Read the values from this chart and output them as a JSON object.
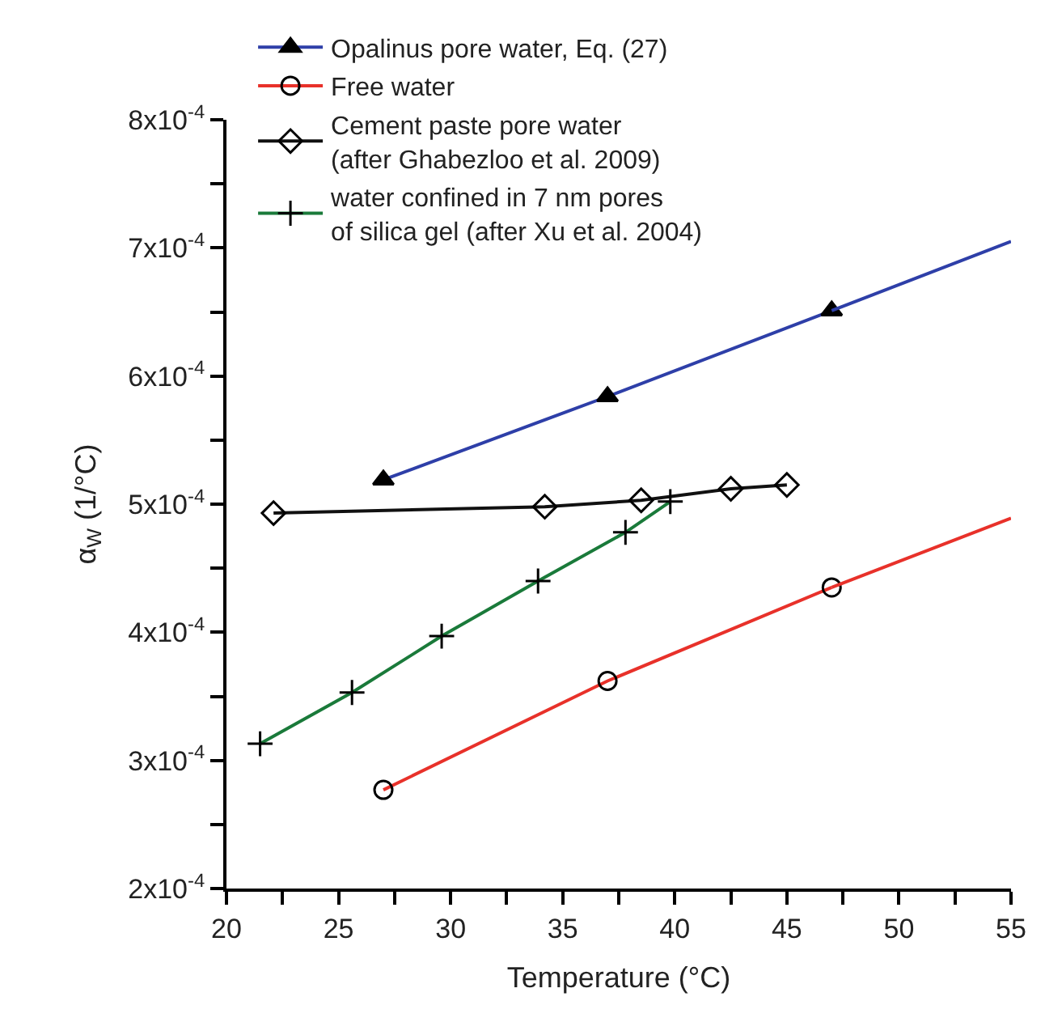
{
  "chart_data": {
    "type": "line",
    "xlabel": "Temperature (°C)",
    "ylabel": "α$_{W}$ (1/°C)",
    "xlim": [
      20,
      55
    ],
    "xticks": [
      20,
      {
        "value": 22.5,
        "label": null
      },
      25,
      {
        "value": 27.5,
        "label": null
      },
      30,
      {
        "value": 32.5,
        "label": null
      },
      35,
      {
        "value": 37.5,
        "label": null
      },
      40,
      {
        "value": 42.5,
        "label": null
      },
      45,
      {
        "value": 47.5,
        "label": null
      },
      50,
      {
        "value": 52.5,
        "label": null
      },
      55
    ],
    "ylim": [
      0.0002,
      0.0008
    ],
    "yticks": [
      {
        "value": 0.0002,
        "label": "2x10$^{-4}$"
      },
      {
        "value": 0.00025,
        "label": null
      },
      {
        "value": 0.0003,
        "label": "3x10$^{-4}$"
      },
      {
        "value": 0.00035,
        "label": null
      },
      {
        "value": 0.0004,
        "label": "4x10$^{-4}$"
      },
      {
        "value": 0.00045,
        "label": null
      },
      {
        "value": 0.0005,
        "label": "5x10$^{-4}$"
      },
      {
        "value": 0.00055,
        "label": null
      },
      {
        "value": 0.0006,
        "label": "6x10$^{-4}$"
      },
      {
        "value": 0.00065,
        "label": null
      },
      {
        "value": 0.0007,
        "label": "7x10$^{-4}$"
      },
      {
        "value": 0.00075,
        "label": null
      },
      {
        "value": 0.0008,
        "label": "8x10$^{-4}$"
      }
    ],
    "legend": "top left",
    "series": [
      {
        "name": "Opalinus pore water, Eq. (27)",
        "color": "#2e3fa8",
        "marker": "triangle",
        "x": [
          27,
          37,
          47
        ],
        "values": [
          0.000519,
          0.000584,
          0.000651
        ]
      },
      {
        "color": "#2e3fa8",
        "marker": "none",
        "x": [
          47,
          55
        ],
        "values": [
          0.000651,
          0.000705
        ]
      },
      {
        "name": "Free water",
        "color": "#e8312a",
        "marker": "circle",
        "x": [
          27,
          37,
          47
        ],
        "values": [
          0.000277,
          0.000362,
          0.000435
        ]
      },
      {
        "color": "#e8312a",
        "marker": "none",
        "x": [
          47,
          55
        ],
        "values": [
          0.000435,
          0.000489
        ]
      },
      {
        "name": "Cement paste pore water\n(after Ghabezloo et al. 2009)",
        "color": "#111111",
        "marker": "diamond",
        "x": [
          22.1,
          34.2,
          38.5,
          42.5,
          45.0
        ],
        "values": [
          0.000493,
          0.000498,
          0.000503,
          0.000512,
          0.000515
        ]
      },
      {
        "name": "water confined in 7 nm pores\nof silica gel (after Xu et al. 2004)",
        "color": "#1a7a3a",
        "marker": "cross",
        "x": [
          21.5,
          25.6,
          29.6,
          33.9,
          37.8,
          39.8
        ],
        "values": [
          0.000313,
          0.000353,
          0.000397,
          0.00044,
          0.000478,
          0.000502
        ]
      }
    ]
  }
}
